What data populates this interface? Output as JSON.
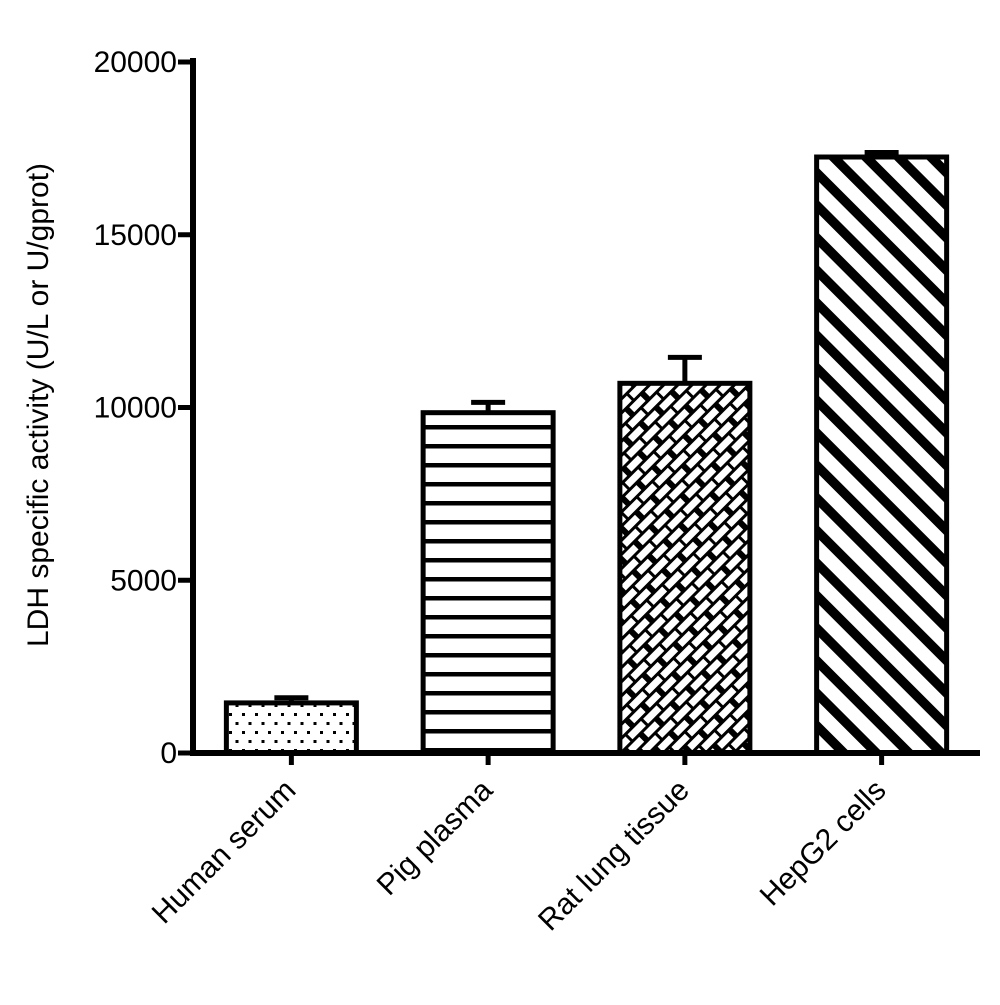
{
  "figure": {
    "background": "#ffffff",
    "ink": "#000000"
  },
  "chart_data": {
    "type": "bar",
    "title": "",
    "xlabel": "",
    "ylabel": "LDH specific activity (U/L or U/gprot)",
    "categories": [
      "Human serum",
      "Pig plasma",
      "Rat lung tissue",
      "HepG2 cells"
    ],
    "values": [
      1450,
      9850,
      10700,
      17250
    ],
    "errors_upper": [
      150,
      300,
      750,
      130
    ],
    "error_style": "upper whisker with cap",
    "ylim": [
      0,
      20000
    ],
    "yticks": [
      0,
      5000,
      10000,
      15000,
      20000
    ],
    "grid": false,
    "legend": "none",
    "bar_fill": "#ffffff",
    "bar_border": "#000000",
    "bar_patterns": [
      "dots",
      "horizontal-lines",
      "diagonal-bricks",
      "diagonal-stripes"
    ],
    "x_tick_label_rotation_deg": -45,
    "tick_direction": "out"
  }
}
